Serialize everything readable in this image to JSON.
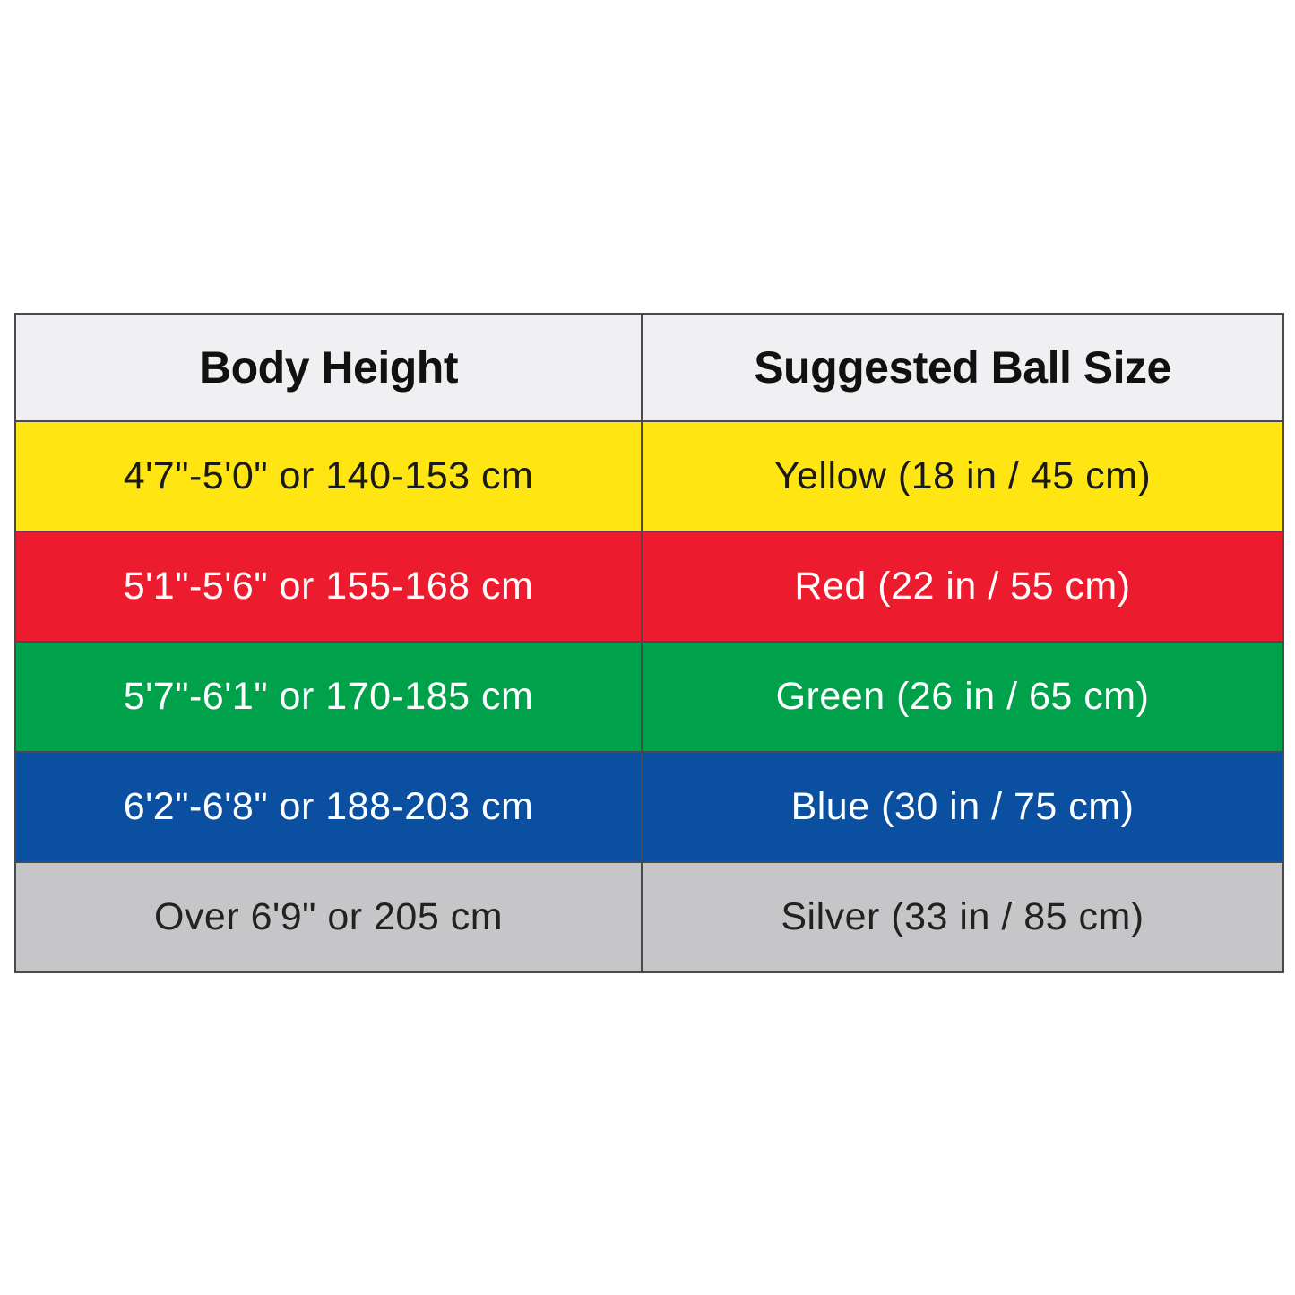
{
  "table": {
    "headers": [
      "Body Height",
      "Suggested Ball Size"
    ],
    "rows": [
      {
        "height": "4'7\"-5'0\" or 140-153 cm",
        "ball": "Yellow (18 in / 45 cm)",
        "color": "#ffe512"
      },
      {
        "height": "5'1\"-5'6\" or 155-168 cm",
        "ball": "Red (22 in / 55 cm)",
        "color": "#ec1c2e"
      },
      {
        "height": "5'7\"-6'1\" or 170-185 cm",
        "ball": "Green (26 in / 65 cm)",
        "color": "#00a14b"
      },
      {
        "height": "6'2\"-6'8\" or 188-203 cm",
        "ball": "Blue (30 in / 75 cm)",
        "color": "#0a4fa0"
      },
      {
        "height": "Over 6'9\" or 205 cm",
        "ball": "Silver (33 in / 85 cm)",
        "color": "#c6c6c8"
      }
    ]
  }
}
